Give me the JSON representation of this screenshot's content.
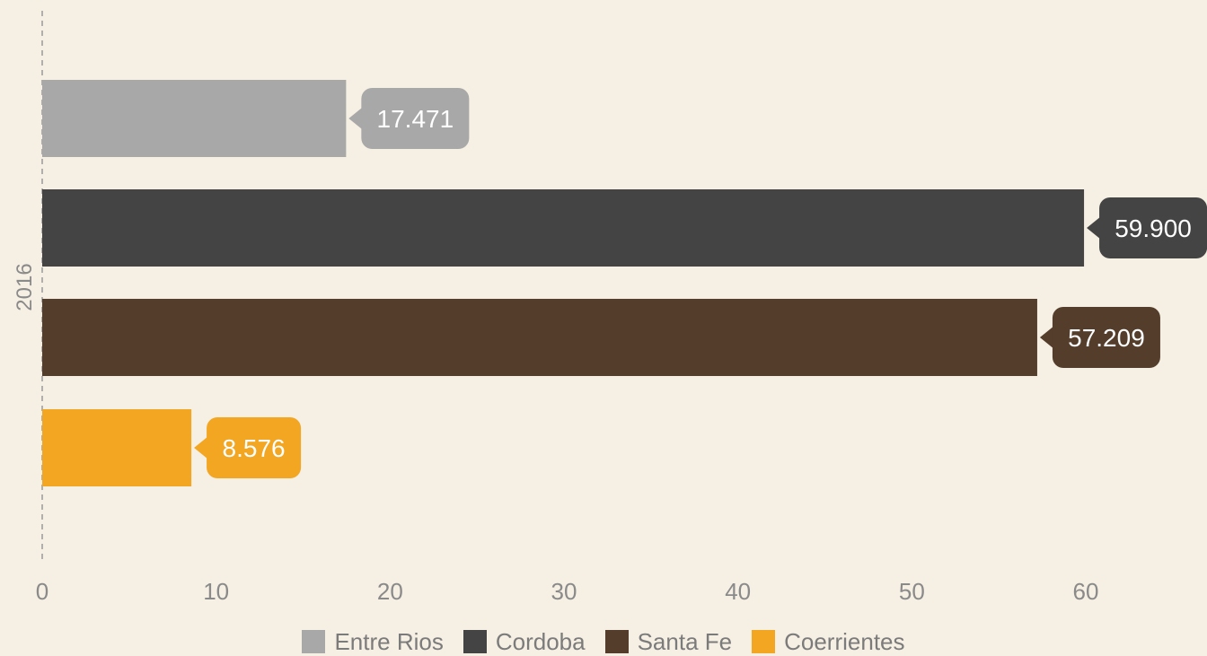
{
  "chart_data": {
    "type": "bar",
    "orientation": "horizontal",
    "categories": [
      "2016"
    ],
    "series": [
      {
        "name": "Entre Rios",
        "values": [
          17.471
        ],
        "label": "17.471",
        "color": "#a8a8a8"
      },
      {
        "name": "Cordoba",
        "values": [
          59.9
        ],
        "label": "59.900",
        "color": "#444444"
      },
      {
        "name": "Santa Fe",
        "values": [
          57.209
        ],
        "label": "57.209",
        "color": "#543d2a"
      },
      {
        "name": "Coerrientes",
        "values": [
          8.576
        ],
        "label": "8.576",
        "color": "#f2a622"
      }
    ],
    "xlim": [
      0,
      70
    ],
    "xticks": [
      "0",
      "10",
      "20",
      "30",
      "40",
      "50",
      "60"
    ],
    "xtick_values": [
      0,
      10,
      20,
      30,
      40,
      50,
      60
    ],
    "title": "",
    "xlabel": "",
    "ylabel": "",
    "grid": false,
    "legend_position": "bottom"
  },
  "colors": {
    "background": "#f6efe3",
    "axis_text": "#8a8a8a",
    "axis_line": "#9a9a9a",
    "label_text": "#ffffff"
  }
}
